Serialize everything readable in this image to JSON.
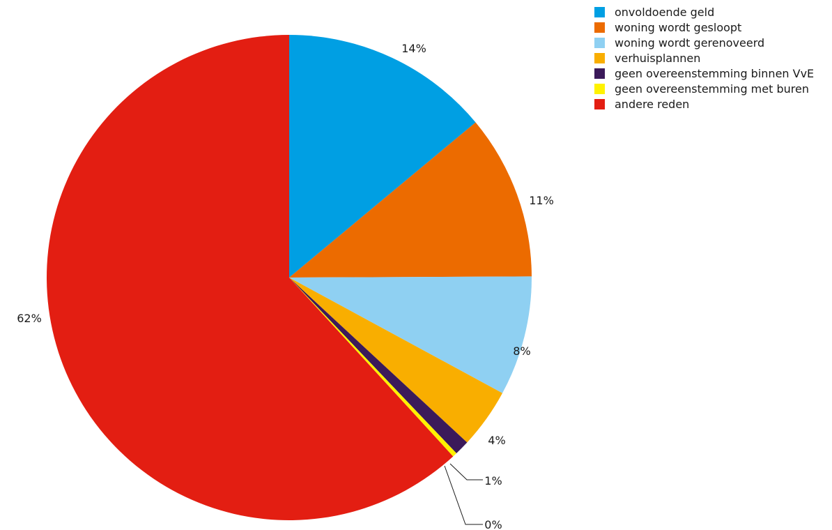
{
  "chart_data": {
    "type": "pie",
    "start_angle_deg": 0,
    "direction": "clockwise",
    "slices": [
      {
        "name": "onvoldoende geld",
        "value": 14,
        "label": "14%",
        "color": "#009fe3"
      },
      {
        "name": "woning wordt gesloopt",
        "value": 11,
        "label": "11%",
        "color": "#ec6b00"
      },
      {
        "name": "woning wordt gerenoveerd",
        "value": 8,
        "label": "8%",
        "color": "#8fd0f2"
      },
      {
        "name": "verhuisplannen",
        "value": 4,
        "label": "4%",
        "color": "#f9ae00"
      },
      {
        "name": "geen overeenstemming binnen VvE",
        "value": 1,
        "label": "1%",
        "color": "#3b1a5a"
      },
      {
        "name": "geen overeenstemming met buren",
        "value": 0.3,
        "label": "0%",
        "color": "#fff200"
      },
      {
        "name": "andere reden",
        "value": 62,
        "label": "62%",
        "color": "#e31e12"
      }
    ],
    "legend": {
      "position": "top-right",
      "entries": [
        "onvoldoende geld",
        "woning wordt gesloopt",
        "woning wordt gerenoveerd",
        "verhuisplannen",
        "geen overeenstemming binnen VvE",
        "geen overeenstemming met buren",
        "andere reden"
      ]
    }
  }
}
